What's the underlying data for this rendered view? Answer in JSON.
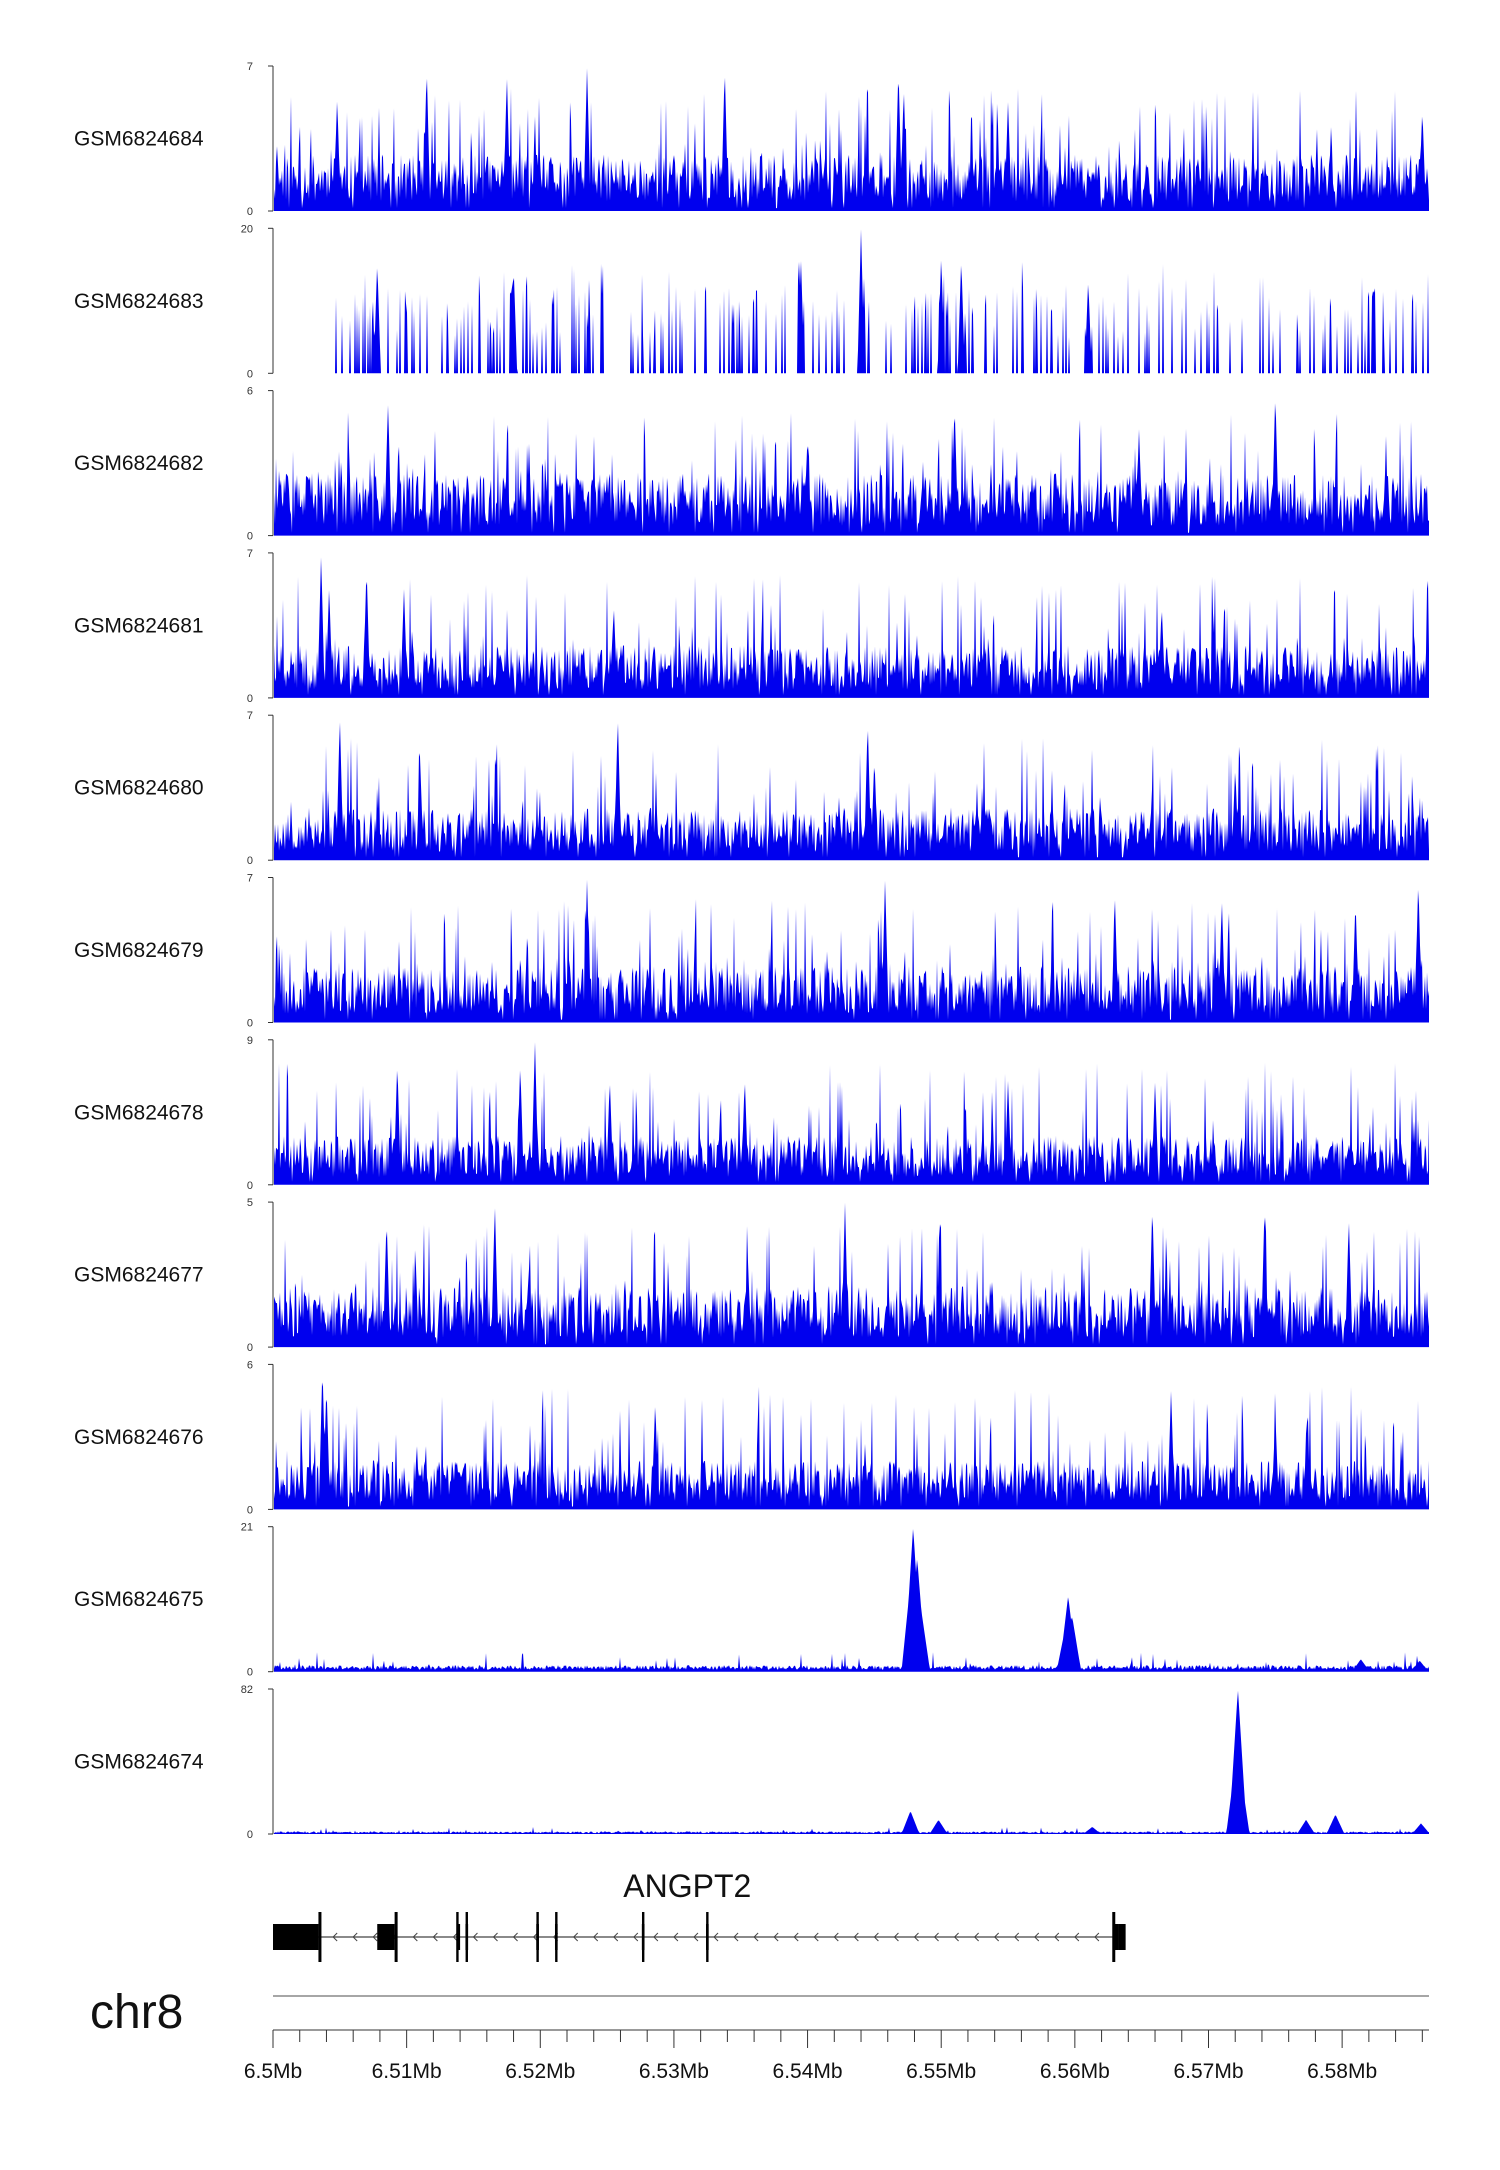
{
  "chart_data": {
    "type": "area",
    "title": "",
    "color": "#0000ee",
    "chromosome": "chr8",
    "x_range": [
      6500000,
      6586500
    ],
    "x_tick_labels": [
      "6.5Mb",
      "6.51Mb",
      "6.52Mb",
      "6.53Mb",
      "6.54Mb",
      "6.55Mb",
      "6.56Mb",
      "6.57Mb",
      "6.58Mb"
    ],
    "x_tick_values": [
      6500000,
      6510000,
      6520000,
      6530000,
      6540000,
      6550000,
      6560000,
      6570000,
      6580000
    ],
    "minor_tick_step": 2000,
    "tracks": [
      {
        "name": "GSM6824684",
        "ymin": 0,
        "ymax": 7,
        "ymin_label": "0",
        "ymax_label": "7",
        "pattern": "noisy",
        "level": 0.3,
        "seed": 11,
        "peaks": [
          [
            6511500,
            7.0
          ],
          [
            6517500,
            6.6
          ],
          [
            6523500,
            7.0
          ],
          [
            6533800,
            7.0
          ],
          [
            6546800,
            7.0
          ],
          [
            6547200,
            6.0
          ],
          [
            6504800,
            5.5
          ],
          [
            6555000,
            5.3
          ],
          [
            6586000,
            5.0
          ]
        ]
      },
      {
        "name": "GSM6824683",
        "ymin": 0,
        "ymax": 20,
        "ymin_label": "0",
        "ymax_label": "20",
        "pattern": "sparse",
        "level": 0.22,
        "seed": 23,
        "start": 6503800,
        "peaks": [
          [
            6507800,
            15.5
          ],
          [
            6518000,
            15.0
          ],
          [
            6539500,
            16.0
          ],
          [
            6544000,
            20.0
          ],
          [
            6550000,
            16.5
          ],
          [
            6551500,
            16.0
          ],
          [
            6561000,
            13.0
          ]
        ]
      },
      {
        "name": "GSM6824682",
        "ymin": 0,
        "ymax": 6,
        "ymin_label": "0",
        "ymax_label": "6",
        "pattern": "noisy",
        "level": 0.33,
        "seed": 37,
        "peaks": [
          [
            6508600,
            5.5
          ],
          [
            6551000,
            5.5
          ],
          [
            6575000,
            6.0
          ],
          [
            6564800,
            4.4
          ],
          [
            6540000,
            4.2
          ]
        ]
      },
      {
        "name": "GSM6824681",
        "ymin": 0,
        "ymax": 7,
        "ymin_label": "0",
        "ymax_label": "7",
        "pattern": "noisy",
        "level": 0.28,
        "seed": 41,
        "peaks": [
          [
            6503600,
            7.0
          ],
          [
            6504200,
            5.4
          ],
          [
            6507000,
            6.4
          ],
          [
            6509800,
            5.3
          ],
          [
            6525500,
            4.5
          ],
          [
            6566500,
            4.5
          ]
        ]
      },
      {
        "name": "GSM6824680",
        "ymin": 0,
        "ymax": 7,
        "ymin_label": "0",
        "ymax_label": "7",
        "pattern": "noisy",
        "level": 0.28,
        "seed": 53,
        "peaks": [
          [
            6505000,
            7.0
          ],
          [
            6525800,
            7.0
          ],
          [
            6544500,
            6.8
          ],
          [
            6511000,
            5.0
          ],
          [
            6545000,
            5.0
          ],
          [
            6572000,
            4.5
          ]
        ]
      },
      {
        "name": "GSM6824679",
        "ymin": 0,
        "ymax": 7,
        "ymin_label": "0",
        "ymax_label": "7",
        "pattern": "noisy",
        "level": 0.3,
        "seed": 67,
        "peaks": [
          [
            6523500,
            7.0
          ],
          [
            6545800,
            7.0
          ],
          [
            6585700,
            7.0
          ],
          [
            6563000,
            6.0
          ],
          [
            6571000,
            6.0
          ],
          [
            6581000,
            6.0
          ]
        ]
      },
      {
        "name": "GSM6824678",
        "ymin": 0,
        "ymax": 9,
        "ymin_label": "0",
        "ymax_label": "9",
        "pattern": "noisy",
        "level": 0.26,
        "seed": 71,
        "peaks": [
          [
            6509300,
            7.7
          ],
          [
            6518500,
            7.6
          ],
          [
            6519600,
            9.0
          ],
          [
            6525200,
            6.6
          ],
          [
            6535300,
            6.7
          ],
          [
            6555000,
            6.5
          ],
          [
            6566000,
            6.4
          ]
        ]
      },
      {
        "name": "GSM6824677",
        "ymin": 0,
        "ymax": 5,
        "ymin_label": "0",
        "ymax_label": "5",
        "pattern": "noisy",
        "level": 0.32,
        "seed": 83,
        "peaks": [
          [
            6516600,
            5.0
          ],
          [
            6542800,
            5.0
          ],
          [
            6565800,
            5.0
          ],
          [
            6574200,
            5.0
          ],
          [
            6508500,
            4.5
          ],
          [
            6580500,
            4.5
          ]
        ]
      },
      {
        "name": "GSM6824676",
        "ymin": 0,
        "ymax": 6,
        "ymin_label": "0",
        "ymax_label": "6",
        "pattern": "noisy",
        "level": 0.26,
        "seed": 97,
        "peaks": [
          [
            6503700,
            6.0
          ],
          [
            6504000,
            5.2
          ],
          [
            6567200,
            5.0
          ],
          [
            6528600,
            4.5
          ],
          [
            6575000,
            4.0
          ]
        ]
      },
      {
        "name": "GSM6824675",
        "ymin": 0,
        "ymax": 21,
        "ymin_label": "0",
        "ymax_label": "21",
        "pattern": "flat",
        "level": 0.045,
        "seed": 101,
        "peaks": [
          [
            6547900,
            21.0
          ],
          [
            6548200,
            16.5
          ],
          [
            6547700,
            13.0
          ],
          [
            6548500,
            9.0
          ],
          [
            6559500,
            11.0
          ],
          [
            6559800,
            8.0
          ],
          [
            6559300,
            6.5
          ],
          [
            6581400,
            1.8
          ],
          [
            6585800,
            1.6
          ]
        ]
      },
      {
        "name": "GSM6824674",
        "ymin": 0,
        "ymax": 82,
        "ymin_label": "0",
        "ymax_label": "82",
        "pattern": "flat",
        "level": 0.018,
        "seed": 113,
        "peaks": [
          [
            6572200,
            82.0
          ],
          [
            6572000,
            40.0
          ],
          [
            6572400,
            35.0
          ],
          [
            6547700,
            13.0
          ],
          [
            6549800,
            8.0
          ],
          [
            6577300,
            8.0
          ],
          [
            6579500,
            11.0
          ],
          [
            6561300,
            4.0
          ],
          [
            6585900,
            6.0
          ]
        ]
      }
    ],
    "gene": {
      "name": "ANGPT2",
      "strand": "-",
      "start": 6500000,
      "end": 6563000,
      "exons": [
        [
          6500000,
          6503400
        ],
        [
          6507800,
          6509100
        ],
        [
          6513800,
          6514000
        ],
        [
          6514400,
          6514600
        ],
        [
          6519700,
          6519900
        ],
        [
          6521100,
          6521300
        ],
        [
          6527600,
          6527800
        ],
        [
          6532400,
          6532600
        ],
        [
          6563000,
          6563300
        ],
        [
          6563300,
          6563800
        ]
      ],
      "tall_exons": [
        [
          6503400,
          6503600
        ],
        [
          6509100,
          6509300
        ],
        [
          6562800,
          6563000
        ]
      ]
    }
  }
}
